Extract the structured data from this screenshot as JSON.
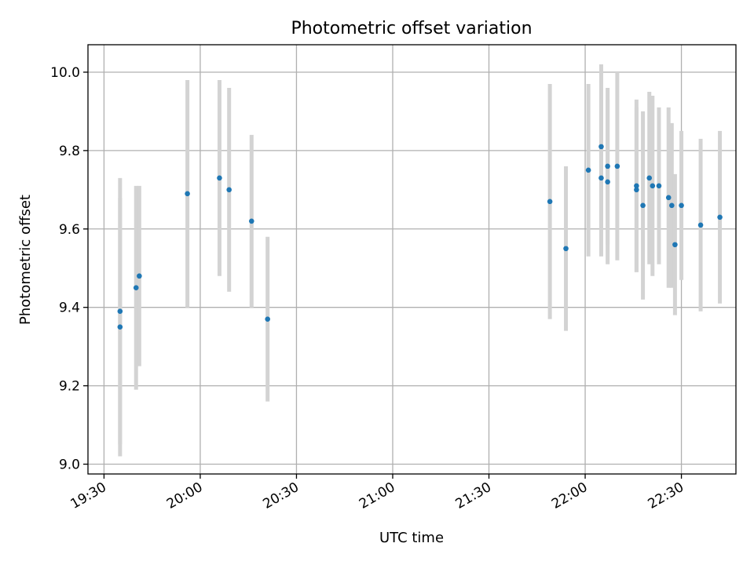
{
  "chart_data": {
    "type": "scatter",
    "title": "Photometric offset variation",
    "xlabel": "UTC time",
    "ylabel": "Photometric offset",
    "x_axis": "time",
    "xlim": [
      "19:25",
      "22:47"
    ],
    "ylim": [
      8.975,
      10.07
    ],
    "xticks": [
      "19:30",
      "20:00",
      "20:30",
      "21:00",
      "21:30",
      "22:00",
      "22:30"
    ],
    "yticks": [
      9.0,
      9.2,
      9.4,
      9.6,
      9.8,
      10.0
    ],
    "yticks_labels": [
      "9.0",
      "9.2",
      "9.4",
      "9.6",
      "9.8",
      "10.0"
    ],
    "grid": true,
    "point_color": "#1f77b4",
    "errorbar_color": "#d3d3d3",
    "series": [
      {
        "points": [
          {
            "t": "19:35",
            "y": 9.39,
            "err": 0.34
          },
          {
            "t": "19:35",
            "y": 9.35,
            "err": 0.33
          },
          {
            "t": "19:40",
            "y": 9.45,
            "err": 0.26
          },
          {
            "t": "19:41",
            "y": 9.48,
            "err": 0.23
          },
          {
            "t": "19:56",
            "y": 9.69,
            "err": 0.29
          },
          {
            "t": "20:06",
            "y": 9.73,
            "err": 0.25
          },
          {
            "t": "20:09",
            "y": 9.7,
            "err": 0.26
          },
          {
            "t": "20:16",
            "y": 9.62,
            "err": 0.22
          },
          {
            "t": "20:21",
            "y": 9.37,
            "err": 0.21
          },
          {
            "t": "21:49",
            "y": 9.67,
            "err": 0.3
          },
          {
            "t": "21:54",
            "y": 9.55,
            "err": 0.21
          },
          {
            "t": "22:01",
            "y": 9.75,
            "err": 0.22
          },
          {
            "t": "22:05",
            "y": 9.81,
            "err": 0.21
          },
          {
            "t": "22:05",
            "y": 9.73,
            "err": 0.2
          },
          {
            "t": "22:07",
            "y": 9.72,
            "err": 0.21
          },
          {
            "t": "22:07",
            "y": 9.76,
            "err": 0.2
          },
          {
            "t": "22:10",
            "y": 9.76,
            "err": 0.24
          },
          {
            "t": "22:16",
            "y": 9.71,
            "err": 0.22
          },
          {
            "t": "22:16",
            "y": 9.7,
            "err": 0.21
          },
          {
            "t": "22:18",
            "y": 9.66,
            "err": 0.24
          },
          {
            "t": "22:20",
            "y": 9.73,
            "err": 0.22
          },
          {
            "t": "22:21",
            "y": 9.71,
            "err": 0.23
          },
          {
            "t": "22:23",
            "y": 9.71,
            "err": 0.2
          },
          {
            "t": "22:26",
            "y": 9.68,
            "err": 0.23
          },
          {
            "t": "22:27",
            "y": 9.66,
            "err": 0.21
          },
          {
            "t": "22:28",
            "y": 9.56,
            "err": 0.18
          },
          {
            "t": "22:30",
            "y": 9.66,
            "err": 0.19
          },
          {
            "t": "22:36",
            "y": 9.61,
            "err": 0.22
          },
          {
            "t": "22:42",
            "y": 9.63,
            "err": 0.22
          }
        ]
      }
    ]
  }
}
